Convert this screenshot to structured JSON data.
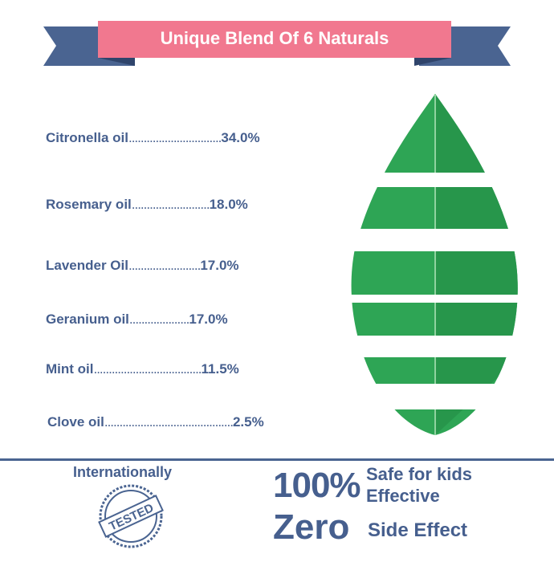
{
  "title": "Unique Blend Of 6 Naturals",
  "colors": {
    "navy": "#4a6491",
    "pink": "#f1788f",
    "green": "#2ea555"
  },
  "ingredients": [
    {
      "name": "Citronella oil",
      "dots": "...............................",
      "pct": "34.0%"
    },
    {
      "name": "Rosemary oil",
      "dots": "..........................",
      "pct": "18.0%"
    },
    {
      "name": "Lavender Oil",
      "dots": "........................",
      "pct": "17.0%"
    },
    {
      "name": "Geranium oil",
      "dots": "....................",
      "pct": "17.0%"
    },
    {
      "name": "Mint oil",
      "dots": "....................................",
      "pct": "11.5%"
    },
    {
      "name": "Clove oil",
      "dots": "...........................................",
      "pct": "2.5%"
    }
  ],
  "footer": {
    "tested_heading": "Internationally",
    "stamp_text": "TESTED",
    "big1": "100%",
    "line1": "Safe for kids",
    "line2": "Effective",
    "big2": "Zero",
    "line3": "Side Effect"
  }
}
